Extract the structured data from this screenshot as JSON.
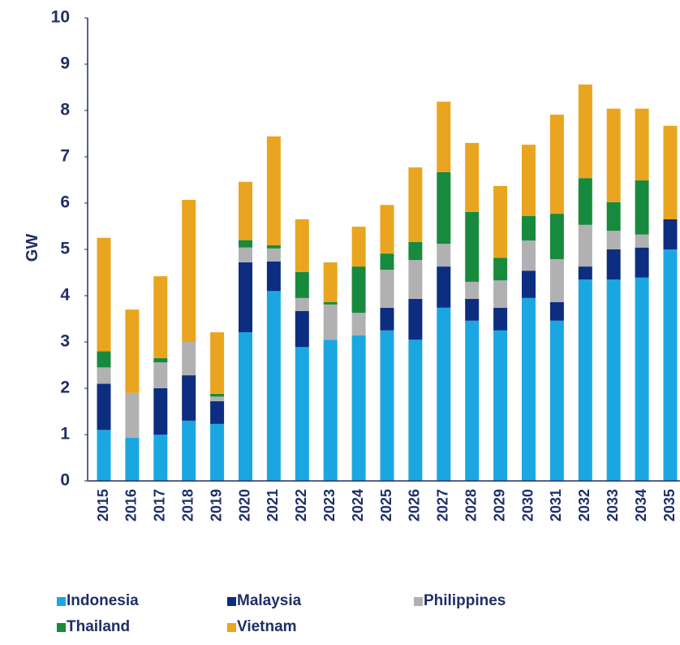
{
  "chart_data": {
    "type": "stacked_bar",
    "y_label": "GW",
    "categories": [
      "2015",
      "2016",
      "2017",
      "2018",
      "2019",
      "2020",
      "2021",
      "2022",
      "2023",
      "2024",
      "2025",
      "2026",
      "2027",
      "2028",
      "2029",
      "2030",
      "2031",
      "2032",
      "2033",
      "2034",
      "2035"
    ],
    "series": [
      {
        "name": "Indonesia",
        "color": "#1aa7e1",
        "values": [
          1.1,
          0.93,
          1.0,
          1.3,
          1.23,
          3.21,
          4.1,
          2.89,
          3.05,
          3.14,
          3.25,
          3.05,
          3.74,
          3.46,
          3.25,
          3.95,
          3.46,
          4.35,
          4.35,
          4.39,
          5.0
        ]
      },
      {
        "name": "Malaysia",
        "color": "#0c2d80",
        "values": [
          1.0,
          0,
          1.0,
          0.98,
          0.49,
          1.51,
          0.64,
          0.78,
          0,
          0,
          0.49,
          0.88,
          0.89,
          0.47,
          0.49,
          0.59,
          0.4,
          0.28,
          0.65,
          0.65,
          0.65
        ]
      },
      {
        "name": "Philippines",
        "color": "#b1b1b3",
        "values": [
          0.35,
          0.97,
          0.56,
          0.72,
          0.1,
          0.32,
          0.28,
          0.28,
          0.76,
          0.49,
          0.82,
          0.84,
          0.49,
          0.37,
          0.59,
          0.65,
          0.93,
          0.9,
          0.4,
          0.28,
          0
        ]
      },
      {
        "name": "Thailand",
        "color": "#178a3e",
        "values": [
          0.35,
          0,
          0.09,
          0,
          0.06,
          0.16,
          0.07,
          0.56,
          0.05,
          1.0,
          0.35,
          0.39,
          1.55,
          1.51,
          0.49,
          0.53,
          0.98,
          1.01,
          0.62,
          1.17,
          0
        ]
      },
      {
        "name": "Vietnam",
        "color": "#e9a51f",
        "values": [
          2.45,
          1.8,
          1.77,
          3.07,
          1.33,
          1.26,
          2.35,
          1.14,
          0.86,
          0.86,
          1.05,
          1.61,
          1.52,
          1.49,
          1.55,
          1.54,
          2.14,
          2.02,
          2.02,
          1.55,
          2.02
        ]
      }
    ],
    "ylim": [
      0,
      10
    ],
    "yticks": [
      0,
      1,
      2,
      3,
      4,
      5,
      6,
      7,
      8,
      9,
      10
    ],
    "grid": false
  }
}
